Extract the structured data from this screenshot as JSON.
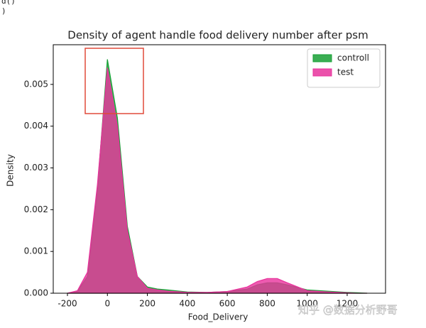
{
  "code_lines": [
    "d()",
    ")"
  ],
  "watermark": "知乎 @数据分析野哥",
  "chart_data": {
    "type": "area",
    "title": "Density  of agent handle food delivery number after psm",
    "xlabel": "Food_Delivery",
    "ylabel": "Density",
    "x": [
      -200,
      -150,
      -100,
      -50,
      0,
      50,
      100,
      150,
      200,
      250,
      300,
      400,
      500,
      600,
      700,
      750,
      800,
      850,
      900,
      1000,
      1100,
      1200,
      1250,
      1300
    ],
    "series": [
      {
        "name": "controll",
        "color": "#17a035",
        "values": [
          0,
          5e-05,
          0.0004,
          0.0025,
          0.0056,
          0.0042,
          0.0016,
          0.0004,
          0.00015,
          0.0001,
          8e-05,
          3e-05,
          2e-05,
          4e-05,
          0.0001,
          0.0002,
          0.00025,
          0.00025,
          0.0002,
          8e-05,
          5e-05,
          2e-05,
          1e-05,
          0
        ]
      },
      {
        "name": "test",
        "color": "#e8329c",
        "values": [
          0,
          6e-05,
          0.0005,
          0.0026,
          0.0054,
          0.004,
          0.0015,
          0.0004,
          0.00012,
          8e-05,
          5e-05,
          2e-05,
          2e-05,
          4e-05,
          0.00015,
          0.00028,
          0.00035,
          0.00035,
          0.00025,
          6e-05,
          3e-05,
          1e-05,
          0,
          0
        ]
      }
    ],
    "xlim": [
      -271,
      1392
    ],
    "ylim": [
      0,
      0.00595
    ],
    "xticks": [
      -200,
      0,
      200,
      400,
      600,
      800,
      1000,
      1200
    ],
    "yticks": [
      {
        "value": 0,
        "label": "0.000"
      },
      {
        "value": 0.001,
        "label": "0.001"
      },
      {
        "value": 0.002,
        "label": "0.002"
      },
      {
        "value": 0.003,
        "label": "0.003"
      },
      {
        "value": 0.004,
        "label": "0.004"
      },
      {
        "value": 0.005,
        "label": "0.005"
      }
    ],
    "legend": "upper right"
  }
}
